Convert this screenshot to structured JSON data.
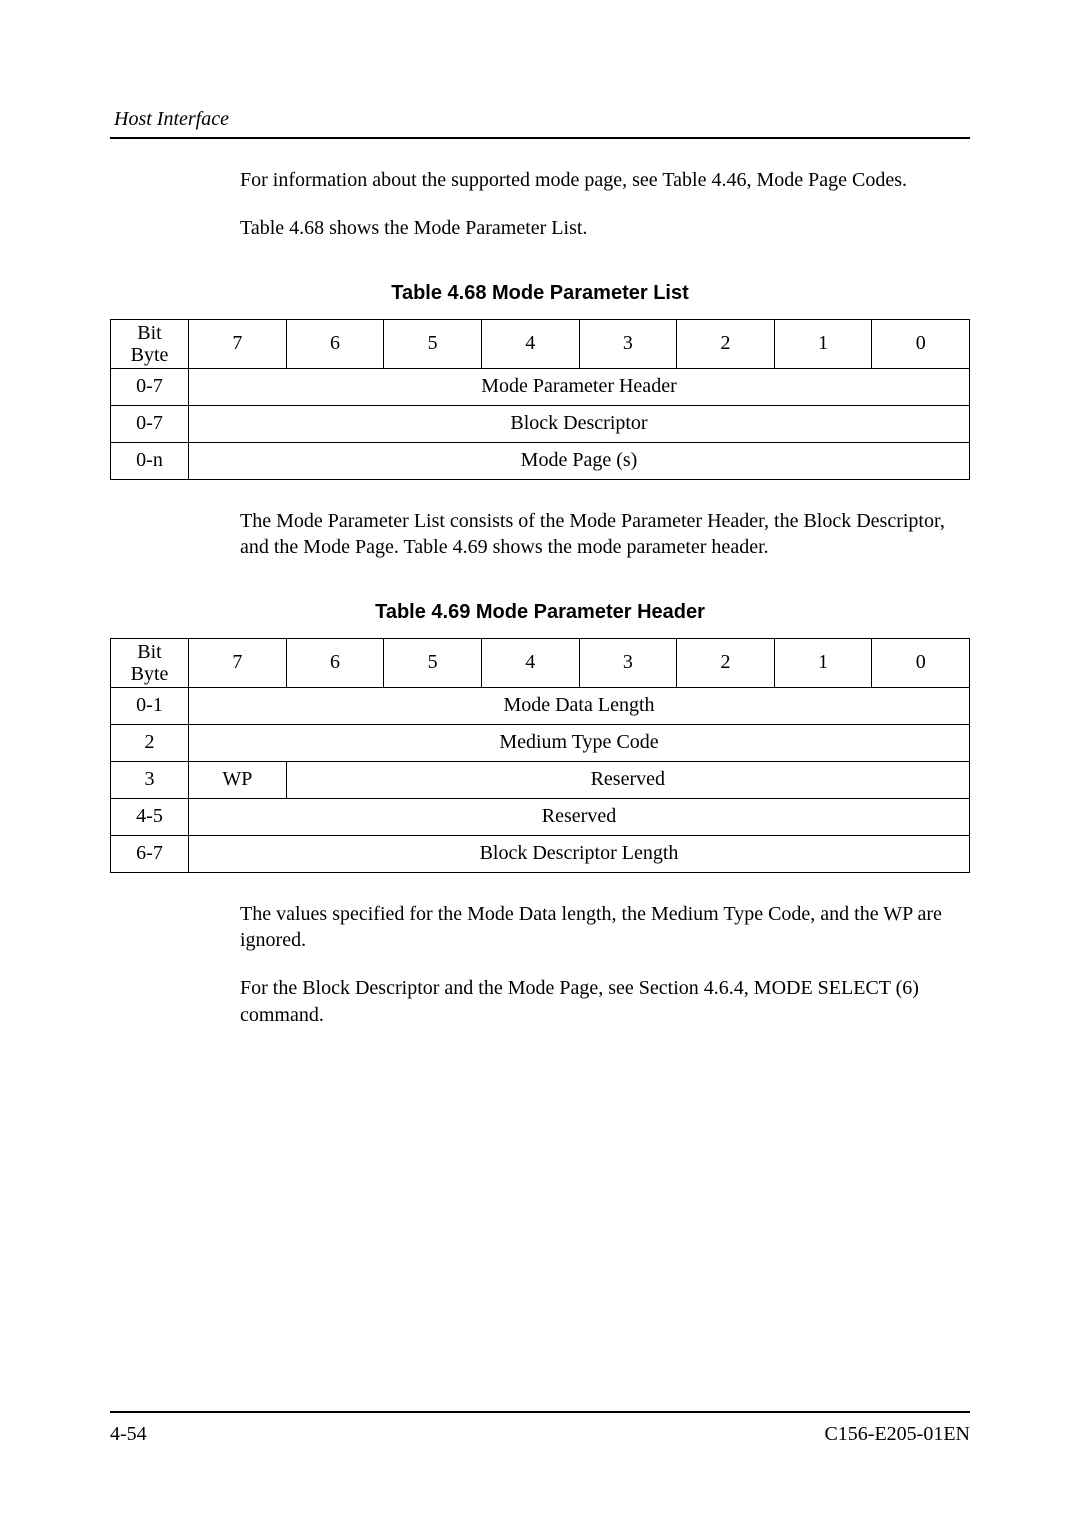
{
  "header": {
    "running": "Host Interface"
  },
  "paragraphs": {
    "p1": "For information about the supported mode page, see Table 4.46, Mode Page Codes.",
    "p2": "Table 4.68 shows the Mode Parameter List.",
    "p3": "The Mode Parameter List consists of the Mode Parameter Header, the Block Descriptor, and the Mode Page.  Table 4.69 shows the mode parameter header.",
    "p4": "The values specified for the Mode Data length, the Medium Type Code, and the WP are ignored.",
    "p5": "For the Block Descriptor and the Mode Page, see Section 4.6.4, MODE SELECT (6) command."
  },
  "table68": {
    "caption": "Table 4.68  Mode Parameter List",
    "bit_label_top": "Bit",
    "bit_label_bottom": "Byte",
    "bits": {
      "b7": "7",
      "b6": "6",
      "b5": "5",
      "b4": "4",
      "b3": "3",
      "b2": "2",
      "b1": "1",
      "b0": "0"
    },
    "rows": {
      "r1_byte": "0-7",
      "r1_val": "Mode Parameter Header",
      "r2_byte": "0-7",
      "r2_val": "Block Descriptor",
      "r3_byte": "0-n",
      "r3_val": "Mode Page (s)"
    }
  },
  "table69": {
    "caption": "Table 4.69 Mode Parameter Header",
    "bit_label_top": "Bit",
    "bit_label_bottom": "Byte",
    "bits": {
      "b7": "7",
      "b6": "6",
      "b5": "5",
      "b4": "4",
      "b3": "3",
      "b2": "2",
      "b1": "1",
      "b0": "0"
    },
    "rows": {
      "r1_byte": "0-1",
      "r1_val": "Mode Data Length",
      "r2_byte": "2",
      "r2_val": "Medium Type Code",
      "r3_byte": "3",
      "r3_wp": "WP",
      "r3_val": "Reserved",
      "r4_byte": "4-5",
      "r4_val": "Reserved",
      "r5_byte": "6-7",
      "r5_val": "Block Descriptor Length"
    }
  },
  "footer": {
    "left": "4-54",
    "right": "C156-E205-01EN"
  }
}
